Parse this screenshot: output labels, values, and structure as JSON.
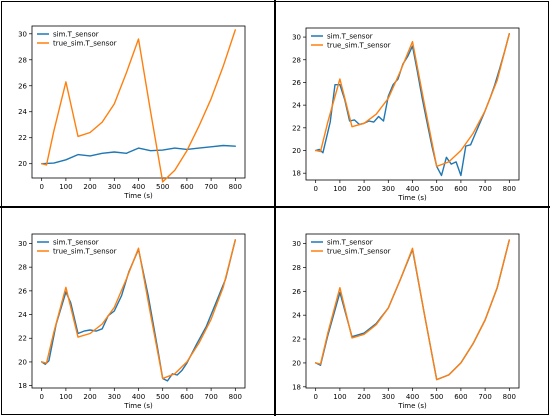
{
  "colors": {
    "sim": "#1f77b4",
    "true": "#ff7f0e"
  },
  "chart_data": [
    {
      "type": "line",
      "xlabel": "Time (s)",
      "ylabel": "",
      "xlim": [
        -40,
        840
      ],
      "ylim": [
        18.9,
        30.6
      ],
      "xticks": [
        "0",
        "100",
        "200",
        "300",
        "400",
        "500",
        "600",
        "700",
        "800"
      ],
      "yticks": [
        "20",
        "22",
        "24",
        "26",
        "28",
        "30"
      ],
      "legend_placement": "top-left",
      "series": [
        {
          "name": "sim.T_sensor",
          "color": "#1f77b4",
          "x": [
            0,
            50,
            100,
            150,
            200,
            250,
            300,
            350,
            400,
            450,
            500,
            550,
            600,
            650,
            700,
            750,
            800
          ],
          "y": [
            20.0,
            20.05,
            20.3,
            20.7,
            20.6,
            20.8,
            20.9,
            20.8,
            21.2,
            21.0,
            21.05,
            21.2,
            21.1,
            21.2,
            21.3,
            21.4,
            21.35
          ]
        },
        {
          "name": "true_sim.T_sensor",
          "color": "#ff7f0e",
          "x": [
            0,
            20,
            50,
            100,
            150,
            200,
            250,
            300,
            350,
            400,
            450,
            500,
            550,
            600,
            650,
            700,
            750,
            800
          ],
          "y": [
            20.0,
            19.9,
            22.5,
            26.3,
            22.1,
            22.4,
            23.2,
            24.6,
            27.0,
            29.6,
            24.0,
            18.6,
            19.5,
            21.0,
            22.9,
            25.0,
            27.5,
            30.3
          ]
        }
      ]
    },
    {
      "type": "line",
      "xlabel": "Time (s)",
      "ylabel": "",
      "xlim": [
        -40,
        840
      ],
      "ylim": [
        17.4,
        30.8
      ],
      "xticks": [
        "0",
        "100",
        "200",
        "300",
        "400",
        "500",
        "600",
        "700",
        "800"
      ],
      "yticks": [
        "18",
        "20",
        "22",
        "24",
        "26",
        "28",
        "30"
      ],
      "legend_placement": "top-left",
      "series": [
        {
          "name": "sim.T_sensor",
          "color": "#1f77b4",
          "x": [
            0,
            15,
            30,
            60,
            80,
            100,
            120,
            140,
            160,
            180,
            200,
            220,
            240,
            260,
            280,
            300,
            320,
            340,
            360,
            380,
            400,
            420,
            440,
            460,
            480,
            500,
            520,
            540,
            560,
            580,
            600,
            620,
            640,
            660,
            680,
            700,
            720,
            740,
            760,
            780,
            800
          ],
          "y": [
            20.0,
            20.1,
            19.8,
            22.5,
            25.8,
            25.8,
            24.5,
            22.6,
            22.7,
            22.3,
            22.4,
            22.6,
            22.5,
            23.0,
            22.6,
            24.8,
            25.8,
            26.3,
            27.6,
            28.3,
            29.2,
            27.0,
            24.6,
            22.5,
            20.4,
            18.6,
            17.8,
            19.4,
            18.8,
            19.0,
            17.8,
            20.4,
            20.5,
            21.5,
            22.5,
            23.5,
            24.6,
            25.8,
            27.2,
            28.7,
            30.3
          ]
        },
        {
          "name": "true_sim.T_sensor",
          "color": "#ff7f0e",
          "x": [
            0,
            20,
            50,
            100,
            150,
            200,
            250,
            300,
            350,
            400,
            450,
            500,
            550,
            600,
            650,
            700,
            750,
            800
          ],
          "y": [
            20.0,
            19.9,
            22.5,
            26.3,
            22.1,
            22.4,
            23.2,
            24.6,
            27.0,
            29.6,
            24.0,
            18.6,
            19.0,
            20.0,
            21.5,
            23.5,
            26.2,
            30.3
          ]
        }
      ]
    },
    {
      "type": "line",
      "xlabel": "Time (s)",
      "ylabel": "",
      "xlim": [
        -40,
        840
      ],
      "ylim": [
        17.8,
        30.8
      ],
      "xticks": [
        "0",
        "100",
        "200",
        "300",
        "400",
        "500",
        "600",
        "700",
        "800"
      ],
      "yticks": [
        "18",
        "20",
        "22",
        "24",
        "26",
        "28",
        "30"
      ],
      "legend_placement": "top-left",
      "series": [
        {
          "name": "sim.T_sensor",
          "color": "#1f77b4",
          "x": [
            0,
            15,
            30,
            60,
            100,
            120,
            150,
            175,
            200,
            225,
            250,
            275,
            300,
            330,
            360,
            400,
            440,
            480,
            500,
            520,
            540,
            560,
            580,
            600,
            640,
            680,
            720,
            760,
            800
          ],
          "y": [
            20.0,
            19.8,
            20.1,
            23.2,
            25.9,
            25.0,
            22.4,
            22.6,
            22.7,
            22.6,
            22.8,
            23.9,
            24.3,
            25.6,
            27.6,
            29.5,
            25.6,
            21.0,
            18.6,
            18.4,
            19.0,
            18.9,
            19.3,
            19.9,
            21.5,
            23.0,
            25.0,
            27.0,
            30.3
          ]
        },
        {
          "name": "true_sim.T_sensor",
          "color": "#ff7f0e",
          "x": [
            0,
            20,
            50,
            100,
            150,
            200,
            250,
            300,
            350,
            400,
            450,
            500,
            550,
            600,
            650,
            700,
            750,
            800
          ],
          "y": [
            20.0,
            19.9,
            22.5,
            26.3,
            22.1,
            22.4,
            23.2,
            24.6,
            27.0,
            29.6,
            24.0,
            18.6,
            19.0,
            20.0,
            21.6,
            23.6,
            26.3,
            30.3
          ]
        }
      ]
    },
    {
      "type": "line",
      "xlabel": "Time (s)",
      "ylabel": "",
      "xlim": [
        -40,
        840
      ],
      "ylim": [
        17.9,
        30.8
      ],
      "xticks": [
        "0",
        "100",
        "200",
        "300",
        "400",
        "500",
        "600",
        "700",
        "800"
      ],
      "yticks": [
        "18",
        "20",
        "22",
        "24",
        "26",
        "28",
        "30"
      ],
      "legend_placement": "top-left",
      "series": [
        {
          "name": "sim.T_sensor",
          "color": "#1f77b4",
          "x": [
            0,
            20,
            50,
            100,
            150,
            200,
            250,
            300,
            350,
            400,
            450,
            500,
            550,
            600,
            650,
            700,
            750,
            800
          ],
          "y": [
            20.0,
            19.8,
            22.3,
            25.9,
            22.2,
            22.5,
            23.3,
            24.6,
            27.0,
            29.5,
            24.0,
            18.6,
            19.0,
            20.0,
            21.6,
            23.6,
            26.3,
            30.3
          ]
        },
        {
          "name": "true_sim.T_sensor",
          "color": "#ff7f0e",
          "x": [
            0,
            20,
            50,
            100,
            150,
            200,
            250,
            300,
            350,
            400,
            450,
            500,
            550,
            600,
            650,
            700,
            750,
            800
          ],
          "y": [
            20.0,
            19.9,
            22.5,
            26.3,
            22.1,
            22.4,
            23.2,
            24.6,
            27.0,
            29.6,
            24.0,
            18.6,
            19.0,
            20.0,
            21.6,
            23.6,
            26.3,
            30.3
          ]
        }
      ]
    }
  ]
}
